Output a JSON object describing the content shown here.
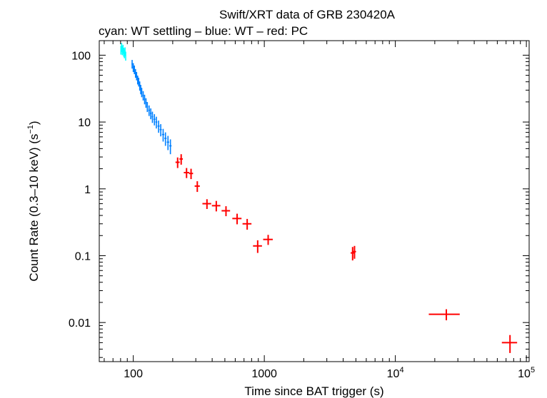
{
  "chart_data": {
    "type": "scatter",
    "title": "Swift/XRT data of GRB 230420A",
    "subtitle": "cyan: WT settling – blue: WT – red: PC",
    "xlabel": "Time since BAT trigger (s)",
    "ylabel": {
      "prefix": "Count Rate (0.3–10 keV) (s",
      "exponent": "−1",
      "suffix": ")"
    },
    "xscale": "log",
    "yscale": "log",
    "xlim": [
      55,
      105000
    ],
    "ylim": [
      0.0026,
      165
    ],
    "x_ticks": [
      {
        "value": 100,
        "label": "100",
        "exp": ""
      },
      {
        "value": 1000,
        "label": "1000",
        "exp": ""
      },
      {
        "value": 10000,
        "label": "10",
        "exp": "4"
      },
      {
        "value": 100000,
        "label": "10",
        "exp": "5"
      }
    ],
    "y_ticks": [
      {
        "value": 100,
        "label": "100"
      },
      {
        "value": 10,
        "label": "10"
      },
      {
        "value": 1,
        "label": "1"
      },
      {
        "value": 0.1,
        "label": "0.1"
      },
      {
        "value": 0.01,
        "label": "0.01"
      }
    ],
    "series": [
      {
        "name": "WT settling",
        "color": "#00ffff",
        "points": [
          {
            "x": 80.5,
            "y": 120,
            "xerr": 0.5,
            "yerr": 18
          },
          {
            "x": 81.5,
            "y": 132,
            "xerr": 0.5,
            "yerr": 20
          },
          {
            "x": 82.5,
            "y": 118,
            "xerr": 0.5,
            "yerr": 18
          },
          {
            "x": 83.5,
            "y": 124,
            "xerr": 0.5,
            "yerr": 19
          },
          {
            "x": 84.5,
            "y": 112,
            "xerr": 0.5,
            "yerr": 17
          },
          {
            "x": 85.5,
            "y": 106,
            "xerr": 0.5,
            "yerr": 16
          },
          {
            "x": 86.5,
            "y": 114,
            "xerr": 0.5,
            "yerr": 17
          },
          {
            "x": 87.5,
            "y": 98,
            "xerr": 0.5,
            "yerr": 15
          }
        ]
      },
      {
        "name": "WT",
        "color": "#0080ff",
        "points": [
          {
            "x": 98,
            "y": 74,
            "xerr": 1,
            "yerr": 11
          },
          {
            "x": 100,
            "y": 66,
            "xerr": 1,
            "yerr": 10
          },
          {
            "x": 102,
            "y": 61,
            "xerr": 1,
            "yerr": 9
          },
          {
            "x": 104,
            "y": 54,
            "xerr": 1,
            "yerr": 8
          },
          {
            "x": 106,
            "y": 49,
            "xerr": 1,
            "yerr": 7
          },
          {
            "x": 108,
            "y": 43,
            "xerr": 1,
            "yerr": 6.5
          },
          {
            "x": 110,
            "y": 40,
            "xerr": 1,
            "yerr": 6
          },
          {
            "x": 112,
            "y": 35,
            "xerr": 1,
            "yerr": 5.5
          },
          {
            "x": 114,
            "y": 31,
            "xerr": 1,
            "yerr": 5
          },
          {
            "x": 116,
            "y": 28,
            "xerr": 1,
            "yerr": 4.5
          },
          {
            "x": 119,
            "y": 25,
            "xerr": 1.5,
            "yerr": 4
          },
          {
            "x": 122,
            "y": 22,
            "xerr": 1.5,
            "yerr": 3.6
          },
          {
            "x": 125,
            "y": 19.5,
            "xerr": 1.5,
            "yerr": 3.2
          },
          {
            "x": 128,
            "y": 17,
            "xerr": 1.5,
            "yerr": 2.9
          },
          {
            "x": 132,
            "y": 15,
            "xerr": 2,
            "yerr": 2.7
          },
          {
            "x": 136,
            "y": 13.5,
            "xerr": 2,
            "yerr": 2.5
          },
          {
            "x": 140,
            "y": 12,
            "xerr": 2,
            "yerr": 2.3
          },
          {
            "x": 145,
            "y": 11,
            "xerr": 2.5,
            "yerr": 2.1
          },
          {
            "x": 150,
            "y": 10,
            "xerr": 2.5,
            "yerr": 2
          },
          {
            "x": 156,
            "y": 8.7,
            "xerr": 3,
            "yerr": 1.8
          },
          {
            "x": 162,
            "y": 7.7,
            "xerr": 3,
            "yerr": 1.6
          },
          {
            "x": 169,
            "y": 6.5,
            "xerr": 3.5,
            "yerr": 1.4
          },
          {
            "x": 176,
            "y": 5.7,
            "xerr": 3.5,
            "yerr": 1.3
          },
          {
            "x": 184,
            "y": 5.0,
            "xerr": 4,
            "yerr": 1.2
          },
          {
            "x": 192,
            "y": 4.4,
            "xerr": 4,
            "yerr": 1.1
          }
        ]
      },
      {
        "name": "PC",
        "color": "#ff0000",
        "points": [
          {
            "x": 218,
            "y": 2.5,
            "xerr": 8,
            "yerr": 0.45
          },
          {
            "x": 232,
            "y": 2.8,
            "xerr": 7,
            "yerr": 0.5
          },
          {
            "x": 255,
            "y": 1.75,
            "xerr": 12,
            "yerr": 0.3
          },
          {
            "x": 276,
            "y": 1.7,
            "xerr": 10,
            "yerr": 0.3
          },
          {
            "x": 308,
            "y": 1.1,
            "xerr": 14,
            "yerr": 0.2
          },
          {
            "x": 365,
            "y": 0.6,
            "xerr": 28,
            "yerr": 0.1
          },
          {
            "x": 430,
            "y": 0.56,
            "xerr": 32,
            "yerr": 0.1
          },
          {
            "x": 510,
            "y": 0.47,
            "xerr": 38,
            "yerr": 0.08
          },
          {
            "x": 620,
            "y": 0.36,
            "xerr": 50,
            "yerr": 0.065
          },
          {
            "x": 740,
            "y": 0.3,
            "xerr": 58,
            "yerr": 0.055
          },
          {
            "x": 890,
            "y": 0.14,
            "xerr": 70,
            "yerr": 0.03
          },
          {
            "x": 1070,
            "y": 0.175,
            "xerr": 90,
            "yerr": 0.03
          },
          {
            "x": 4720,
            "y": 0.11,
            "xerr": 160,
            "yerr": 0.025
          },
          {
            "x": 4880,
            "y": 0.115,
            "xerr": 130,
            "yerr": 0.025
          },
          {
            "x": 24500,
            "y": 0.0133,
            "xerr": 6500,
            "yerr": 0.0025
          },
          {
            "x": 75000,
            "y": 0.005,
            "xerr": 10000,
            "yerr": 0.0015
          }
        ]
      }
    ]
  }
}
